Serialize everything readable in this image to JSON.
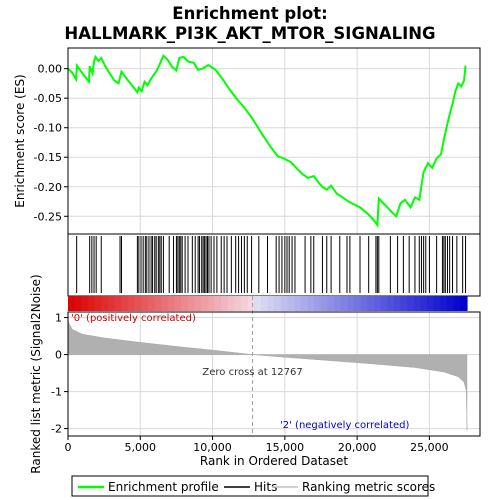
{
  "chart_data": {
    "type": "line",
    "title_line1": "Enrichment plot:",
    "title_line2": "HALLMARK_PI3K_AKT_MTOR_SIGNALING",
    "xlabel": "Rank in Ordered Dataset",
    "ylabel_top": "Enrichment score (ES)",
    "ylabel_bottom": "Ranked list metric (Signal2Noise)",
    "xlim": [
      0,
      28500
    ],
    "x_ticks": [
      0,
      5000,
      10000,
      15000,
      20000,
      25000
    ],
    "x_tick_labels": [
      "0",
      "5,000",
      "10,000",
      "15,000",
      "20,000",
      "25,000"
    ],
    "es_ylim": [
      -0.28,
      0.035
    ],
    "es_ticks": [
      0.0,
      -0.05,
      -0.1,
      -0.15,
      -0.2,
      -0.25
    ],
    "es_tick_labels": [
      "0.00",
      "-0.05",
      "-0.10",
      "-0.15",
      "-0.20",
      "-0.25"
    ],
    "metric_ylim": [
      -2.2,
      1.15
    ],
    "metric_ticks": [
      1,
      0,
      -1,
      -2
    ],
    "metric_tick_labels": [
      "1",
      "0",
      "-1",
      "-2"
    ],
    "zero_cross_rank": 12767,
    "zero_cross_label": "Zero cross at 12767",
    "pos_label": "'0' (positively correlated)",
    "neg_label": "'2' (negatively correlated)",
    "grid": true,
    "legend_position": "bottom",
    "series": [
      {
        "name": "Enrichment profile",
        "color": "#00ff00",
        "points": [
          [
            0,
            0.0
          ],
          [
            300,
            -0.007
          ],
          [
            550,
            -0.018
          ],
          [
            620,
            0.005
          ],
          [
            1000,
            -0.008
          ],
          [
            1450,
            -0.022
          ],
          [
            1500,
            0.004
          ],
          [
            1700,
            -0.008
          ],
          [
            1800,
            0.012
          ],
          [
            1900,
            0.02
          ],
          [
            2100,
            0.013
          ],
          [
            2300,
            0.018
          ],
          [
            2600,
            0.003
          ],
          [
            3200,
            -0.02
          ],
          [
            3500,
            -0.025
          ],
          [
            3700,
            -0.005
          ],
          [
            3900,
            -0.012
          ],
          [
            4800,
            -0.04
          ],
          [
            4900,
            -0.032
          ],
          [
            5100,
            -0.038
          ],
          [
            5300,
            -0.022
          ],
          [
            5500,
            -0.028
          ],
          [
            5800,
            -0.015
          ],
          [
            6100,
            -0.005
          ],
          [
            6300,
            0.005
          ],
          [
            6600,
            0.022
          ],
          [
            6900,
            0.015
          ],
          [
            7200,
            0.003
          ],
          [
            7500,
            -0.003
          ],
          [
            7700,
            0.018
          ],
          [
            8000,
            0.02
          ],
          [
            8300,
            0.012
          ],
          [
            8700,
            0.01
          ],
          [
            9000,
            -0.002
          ],
          [
            9300,
            0.0
          ],
          [
            9700,
            0.006
          ],
          [
            10200,
            -0.002
          ],
          [
            10700,
            -0.018
          ],
          [
            11200,
            -0.036
          ],
          [
            11700,
            -0.052
          ],
          [
            12200,
            -0.066
          ],
          [
            12767,
            -0.085
          ],
          [
            13400,
            -0.11
          ],
          [
            14000,
            -0.132
          ],
          [
            14500,
            -0.148
          ],
          [
            15000,
            -0.153
          ],
          [
            15400,
            -0.158
          ],
          [
            15800,
            -0.168
          ],
          [
            16200,
            -0.178
          ],
          [
            16600,
            -0.185
          ],
          [
            17000,
            -0.182
          ],
          [
            17300,
            -0.192
          ],
          [
            17600,
            -0.2
          ],
          [
            17900,
            -0.205
          ],
          [
            18200,
            -0.198
          ],
          [
            18600,
            -0.212
          ],
          [
            19000,
            -0.218
          ],
          [
            19400,
            -0.225
          ],
          [
            19800,
            -0.23
          ],
          [
            20200,
            -0.235
          ],
          [
            20700,
            -0.245
          ],
          [
            21100,
            -0.255
          ],
          [
            21400,
            -0.265
          ],
          [
            21500,
            -0.22
          ],
          [
            21900,
            -0.23
          ],
          [
            22400,
            -0.243
          ],
          [
            22700,
            -0.25
          ],
          [
            23000,
            -0.228
          ],
          [
            23300,
            -0.222
          ],
          [
            23700,
            -0.235
          ],
          [
            24000,
            -0.218
          ],
          [
            24300,
            -0.222
          ],
          [
            24600,
            -0.175
          ],
          [
            24900,
            -0.16
          ],
          [
            25200,
            -0.168
          ],
          [
            25500,
            -0.152
          ],
          [
            25800,
            -0.145
          ],
          [
            26000,
            -0.12
          ],
          [
            26200,
            -0.098
          ],
          [
            26400,
            -0.078
          ],
          [
            26600,
            -0.06
          ],
          [
            26800,
            -0.038
          ],
          [
            27000,
            -0.025
          ],
          [
            27200,
            -0.03
          ],
          [
            27400,
            -0.02
          ],
          [
            27500,
            0.005
          ]
        ]
      },
      {
        "name": "Hits",
        "color": "#000000",
        "ranks": [
          600,
          1500,
          1650,
          1800,
          1950,
          2300,
          3600,
          3700,
          4800,
          4900,
          5050,
          5200,
          5350,
          5450,
          5600,
          5750,
          5850,
          6000,
          6100,
          6250,
          6350,
          6450,
          6600,
          7000,
          7300,
          7500,
          7600,
          7700,
          7800,
          7900,
          8100,
          8300,
          8600,
          8800,
          9000,
          9100,
          9250,
          9350,
          9450,
          9550,
          9650,
          9750,
          9900,
          10100,
          10300,
          10600,
          10800,
          11000,
          11300,
          11600,
          11800,
          12000,
          12200,
          12400,
          12700,
          13200,
          13800,
          14400,
          14600,
          14800,
          15000,
          15150,
          15300,
          15500,
          15700,
          16400,
          16800,
          17000,
          17600,
          17900,
          18200,
          18800,
          19300,
          19500,
          20200,
          20800,
          21300,
          21400,
          21500,
          22300,
          22800,
          23200,
          23600,
          24000,
          24300,
          24450,
          24600,
          24750,
          25000,
          25500,
          25900,
          26000,
          26100,
          26250,
          26400,
          26600,
          26900,
          27300,
          27500
        ]
      },
      {
        "name": "Ranking metric scores",
        "color": "#c0c0c0",
        "points": [
          [
            0,
            1.0
          ],
          [
            50,
            0.86
          ],
          [
            300,
            0.68
          ],
          [
            1000,
            0.55
          ],
          [
            2500,
            0.45
          ],
          [
            5000,
            0.33
          ],
          [
            8000,
            0.2
          ],
          [
            10000,
            0.12
          ],
          [
            12767,
            0.0
          ],
          [
            15000,
            -0.07
          ],
          [
            18000,
            -0.16
          ],
          [
            21000,
            -0.25
          ],
          [
            24000,
            -0.35
          ],
          [
            26000,
            -0.47
          ],
          [
            27000,
            -0.6
          ],
          [
            27400,
            -0.75
          ],
          [
            27550,
            -1.0
          ],
          [
            27600,
            -2.05
          ]
        ]
      }
    ]
  }
}
